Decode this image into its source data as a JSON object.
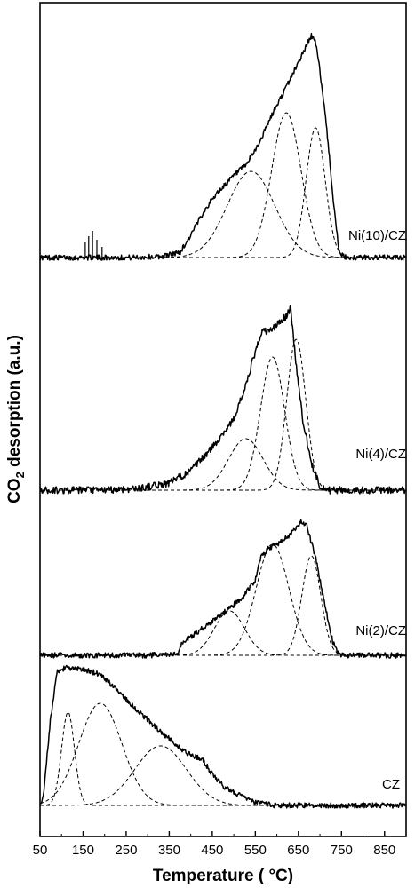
{
  "chart_data": {
    "type": "line",
    "title": "",
    "xlabel": "Temperature ( °C)",
    "ylabel_parts": {
      "main": "CO",
      "sub": "2",
      "rest": " desorption (a.u.)"
    },
    "x_ticks": [
      50,
      150,
      250,
      350,
      450,
      550,
      650,
      750,
      850
    ],
    "xlim": [
      50,
      900
    ],
    "grid": false,
    "y_tick_labels": false,
    "panels": [
      {
        "label": "Ni(10)/CZ",
        "noise": 3,
        "measured": [
          [
            50,
            0
          ],
          [
            140,
            0
          ],
          [
            200,
            0
          ],
          [
            260,
            0
          ],
          [
            330,
            1
          ],
          [
            375,
            6
          ],
          [
            400,
            25
          ],
          [
            430,
            52
          ],
          [
            460,
            72
          ],
          [
            500,
            92
          ],
          [
            530,
            105
          ],
          [
            560,
            130
          ],
          [
            590,
            162
          ],
          [
            620,
            190
          ],
          [
            650,
            220
          ],
          [
            680,
            250
          ],
          [
            690,
            242
          ],
          [
            700,
            210
          ],
          [
            715,
            150
          ],
          [
            730,
            70
          ],
          [
            745,
            4
          ],
          [
            760,
            0
          ],
          [
            900,
            0
          ]
        ],
        "spikes": [
          [
            155,
            18
          ],
          [
            163,
            24
          ],
          [
            172,
            30
          ],
          [
            182,
            20
          ],
          [
            194,
            12
          ]
        ],
        "peaks": [
          {
            "center": 540,
            "height": 97,
            "width": 55
          },
          {
            "center": 622,
            "height": 163,
            "width": 34
          },
          {
            "center": 690,
            "height": 146,
            "width": 22
          }
        ]
      },
      {
        "label": "Ni(4)/CZ",
        "noise": 4,
        "measured": [
          [
            50,
            0
          ],
          [
            200,
            0
          ],
          [
            280,
            2
          ],
          [
            350,
            8
          ],
          [
            400,
            22
          ],
          [
            450,
            48
          ],
          [
            500,
            80
          ],
          [
            530,
            120
          ],
          [
            545,
            148
          ],
          [
            560,
            170
          ],
          [
            565,
            180
          ],
          [
            580,
            178
          ],
          [
            600,
            186
          ],
          [
            620,
            195
          ],
          [
            632,
            205
          ],
          [
            645,
            140
          ],
          [
            660,
            80
          ],
          [
            680,
            30
          ],
          [
            700,
            5
          ],
          [
            720,
            0
          ],
          [
            900,
            0
          ]
        ],
        "spikes": [],
        "peaks": [
          {
            "center": 528,
            "height": 58,
            "width": 40
          },
          {
            "center": 590,
            "height": 150,
            "width": 28
          },
          {
            "center": 645,
            "height": 170,
            "width": 22
          }
        ]
      },
      {
        "label": "Ni(2)/CZ",
        "noise": 3,
        "measured": [
          [
            50,
            0
          ],
          [
            200,
            0
          ],
          [
            300,
            0
          ],
          [
            370,
            1
          ],
          [
            380,
            14
          ],
          [
            420,
            28
          ],
          [
            470,
            45
          ],
          [
            520,
            65
          ],
          [
            550,
            85
          ],
          [
            560,
            108
          ],
          [
            580,
            120
          ],
          [
            610,
            128
          ],
          [
            640,
            140
          ],
          [
            655,
            150
          ],
          [
            670,
            145
          ],
          [
            690,
            110
          ],
          [
            710,
            60
          ],
          [
            730,
            15
          ],
          [
            745,
            0
          ],
          [
            900,
            0
          ]
        ],
        "spikes": [],
        "peaks": [
          {
            "center": 490,
            "height": 50,
            "width": 35
          },
          {
            "center": 590,
            "height": 125,
            "width": 38
          },
          {
            "center": 680,
            "height": 112,
            "width": 22
          }
        ]
      },
      {
        "label": "CZ",
        "noise": 3,
        "measured": [
          [
            50,
            0
          ],
          [
            57,
            8
          ],
          [
            75,
            100
          ],
          [
            90,
            150
          ],
          [
            110,
            155
          ],
          [
            150,
            153
          ],
          [
            190,
            148
          ],
          [
            230,
            130
          ],
          [
            270,
            110
          ],
          [
            310,
            92
          ],
          [
            350,
            75
          ],
          [
            380,
            62
          ],
          [
            410,
            55
          ],
          [
            430,
            50
          ],
          [
            450,
            35
          ],
          [
            480,
            20
          ],
          [
            520,
            10
          ],
          [
            550,
            3
          ],
          [
            600,
            0
          ],
          [
            900,
            0
          ]
        ],
        "spikes": [],
        "peaks": [
          {
            "center": 115,
            "height": 105,
            "width": 15
          },
          {
            "center": 190,
            "height": 115,
            "width": 50
          },
          {
            "center": 330,
            "height": 67,
            "width": 60
          }
        ]
      }
    ]
  }
}
